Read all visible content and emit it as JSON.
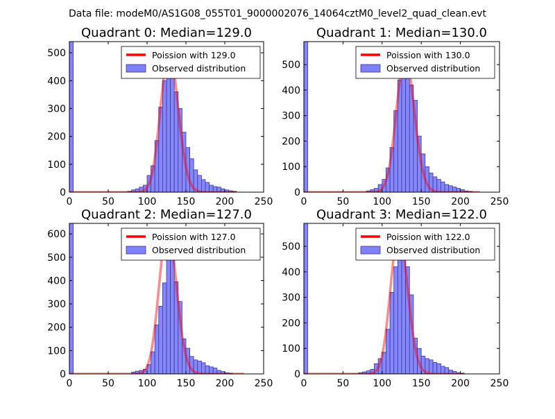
{
  "figure_title": "Data file: modeM0/AS1G08_055T01_9000002076_14064cztM0_level2_quad_clean.evt",
  "colors": {
    "bar_fill": "#7f7fff",
    "bar_edge": "#3a3a8a",
    "poisson_line": "#ff0000"
  },
  "chart_data": [
    {
      "type": "bar",
      "title": "Quadrant 0: Median=129.0",
      "xlim": [
        0,
        250
      ],
      "ylim": [
        0,
        540
      ],
      "xticks": [
        "0",
        "50",
        "100",
        "150",
        "200",
        "250"
      ],
      "yticks": [
        "0",
        "100",
        "200",
        "300",
        "400",
        "500"
      ],
      "ytick_values": [
        0,
        100,
        200,
        300,
        400,
        500
      ],
      "bin_width": 5,
      "median": 129,
      "peak": 500,
      "legend": {
        "placement": "top-right",
        "line_label": "Poission with 129.0",
        "bar_label": "Observed distribution"
      },
      "bins": [
        [
          0,
          540
        ],
        [
          75,
          3
        ],
        [
          80,
          8
        ],
        [
          85,
          12
        ],
        [
          90,
          18
        ],
        [
          95,
          25
        ],
        [
          100,
          60
        ],
        [
          105,
          95
        ],
        [
          110,
          185
        ],
        [
          115,
          305
        ],
        [
          120,
          400
        ],
        [
          125,
          480
        ],
        [
          130,
          460
        ],
        [
          135,
          360
        ],
        [
          140,
          300
        ],
        [
          145,
          215
        ],
        [
          150,
          160
        ],
        [
          155,
          120
        ],
        [
          160,
          80
        ],
        [
          165,
          60
        ],
        [
          170,
          45
        ],
        [
          175,
          35
        ],
        [
          180,
          25
        ],
        [
          185,
          20
        ],
        [
          190,
          18
        ],
        [
          195,
          12
        ],
        [
          200,
          8
        ],
        [
          205,
          5
        ],
        [
          210,
          3
        ]
      ],
      "line_range": [
        0,
        215
      ]
    },
    {
      "type": "bar",
      "title": "Quadrant 1: Median=130.0",
      "xlim": [
        0,
        250
      ],
      "ylim": [
        0,
        590
      ],
      "xticks": [
        "0",
        "50",
        "100",
        "150",
        "200",
        "250"
      ],
      "yticks": [
        "0",
        "100",
        "200",
        "300",
        "400",
        "500"
      ],
      "ytick_values": [
        0,
        100,
        200,
        300,
        400,
        500
      ],
      "bin_width": 5,
      "median": 130,
      "peak": 530,
      "legend": {
        "placement": "top-right",
        "line_label": "Poission with 130.0",
        "bar_label": "Observed distribution"
      },
      "bins": [
        [
          0,
          590
        ],
        [
          80,
          5
        ],
        [
          85,
          10
        ],
        [
          90,
          15
        ],
        [
          95,
          30
        ],
        [
          100,
          50
        ],
        [
          105,
          95
        ],
        [
          110,
          175
        ],
        [
          115,
          320
        ],
        [
          120,
          440
        ],
        [
          125,
          480
        ],
        [
          130,
          480
        ],
        [
          135,
          420
        ],
        [
          140,
          360
        ],
        [
          145,
          220
        ],
        [
          150,
          150
        ],
        [
          155,
          100
        ],
        [
          160,
          75
        ],
        [
          165,
          60
        ],
        [
          170,
          50
        ],
        [
          175,
          40
        ],
        [
          180,
          30
        ],
        [
          185,
          25
        ],
        [
          190,
          20
        ],
        [
          195,
          15
        ],
        [
          200,
          10
        ],
        [
          205,
          5
        ],
        [
          210,
          3
        ]
      ],
      "line_range": [
        0,
        225
      ]
    },
    {
      "type": "bar",
      "title": "Quadrant 2: Median=127.0",
      "xlim": [
        0,
        250
      ],
      "ylim": [
        0,
        645
      ],
      "xticks": [
        "0",
        "50",
        "100",
        "150",
        "200",
        "250"
      ],
      "yticks": [
        "0",
        "100",
        "200",
        "300",
        "400",
        "500",
        "600"
      ],
      "ytick_values": [
        0,
        100,
        200,
        300,
        400,
        500,
        600
      ],
      "bin_width": 5,
      "median": 127,
      "peak": 620,
      "legend": {
        "placement": "top-right",
        "line_label": "Poission with 127.0",
        "bar_label": "Observed distribution"
      },
      "bins": [
        [
          0,
          645
        ],
        [
          80,
          8
        ],
        [
          85,
          12
        ],
        [
          90,
          15
        ],
        [
          95,
          20
        ],
        [
          100,
          40
        ],
        [
          105,
          95
        ],
        [
          110,
          210
        ],
        [
          115,
          290
        ],
        [
          120,
          390
        ],
        [
          125,
          530
        ],
        [
          130,
          610
        ],
        [
          135,
          395
        ],
        [
          140,
          310
        ],
        [
          145,
          150
        ],
        [
          150,
          110
        ],
        [
          155,
          75
        ],
        [
          160,
          60
        ],
        [
          165,
          55
        ],
        [
          170,
          48
        ],
        [
          175,
          35
        ],
        [
          180,
          30
        ],
        [
          185,
          25
        ],
        [
          190,
          15
        ],
        [
          195,
          10
        ],
        [
          200,
          5
        ],
        [
          205,
          3
        ]
      ],
      "line_range": [
        0,
        225
      ]
    },
    {
      "type": "bar",
      "title": "Quadrant 3: Median=122.0",
      "xlim": [
        0,
        250
      ],
      "ylim": [
        0,
        590
      ],
      "xticks": [
        "0",
        "50",
        "100",
        "150",
        "200",
        "250"
      ],
      "yticks": [
        "0",
        "100",
        "200",
        "300",
        "400",
        "500"
      ],
      "ytick_values": [
        0,
        100,
        200,
        300,
        400,
        500
      ],
      "bin_width": 5,
      "median": 122,
      "peak": 550,
      "legend": {
        "placement": "top-right",
        "line_label": "Poission with 122.0",
        "bar_label": "Observed distribution"
      },
      "bins": [
        [
          0,
          590
        ],
        [
          70,
          5
        ],
        [
          75,
          8
        ],
        [
          80,
          12
        ],
        [
          85,
          18
        ],
        [
          90,
          40
        ],
        [
          95,
          60
        ],
        [
          100,
          85
        ],
        [
          105,
          175
        ],
        [
          110,
          320
        ],
        [
          115,
          420
        ],
        [
          120,
          550
        ],
        [
          125,
          480
        ],
        [
          130,
          420
        ],
        [
          135,
          310
        ],
        [
          140,
          140
        ],
        [
          145,
          100
        ],
        [
          150,
          70
        ],
        [
          155,
          60
        ],
        [
          160,
          55
        ],
        [
          165,
          45
        ],
        [
          170,
          40
        ],
        [
          175,
          30
        ],
        [
          180,
          25
        ],
        [
          185,
          15
        ],
        [
          190,
          10
        ],
        [
          195,
          5
        ],
        [
          200,
          3
        ]
      ],
      "line_range": [
        0,
        205
      ]
    }
  ]
}
